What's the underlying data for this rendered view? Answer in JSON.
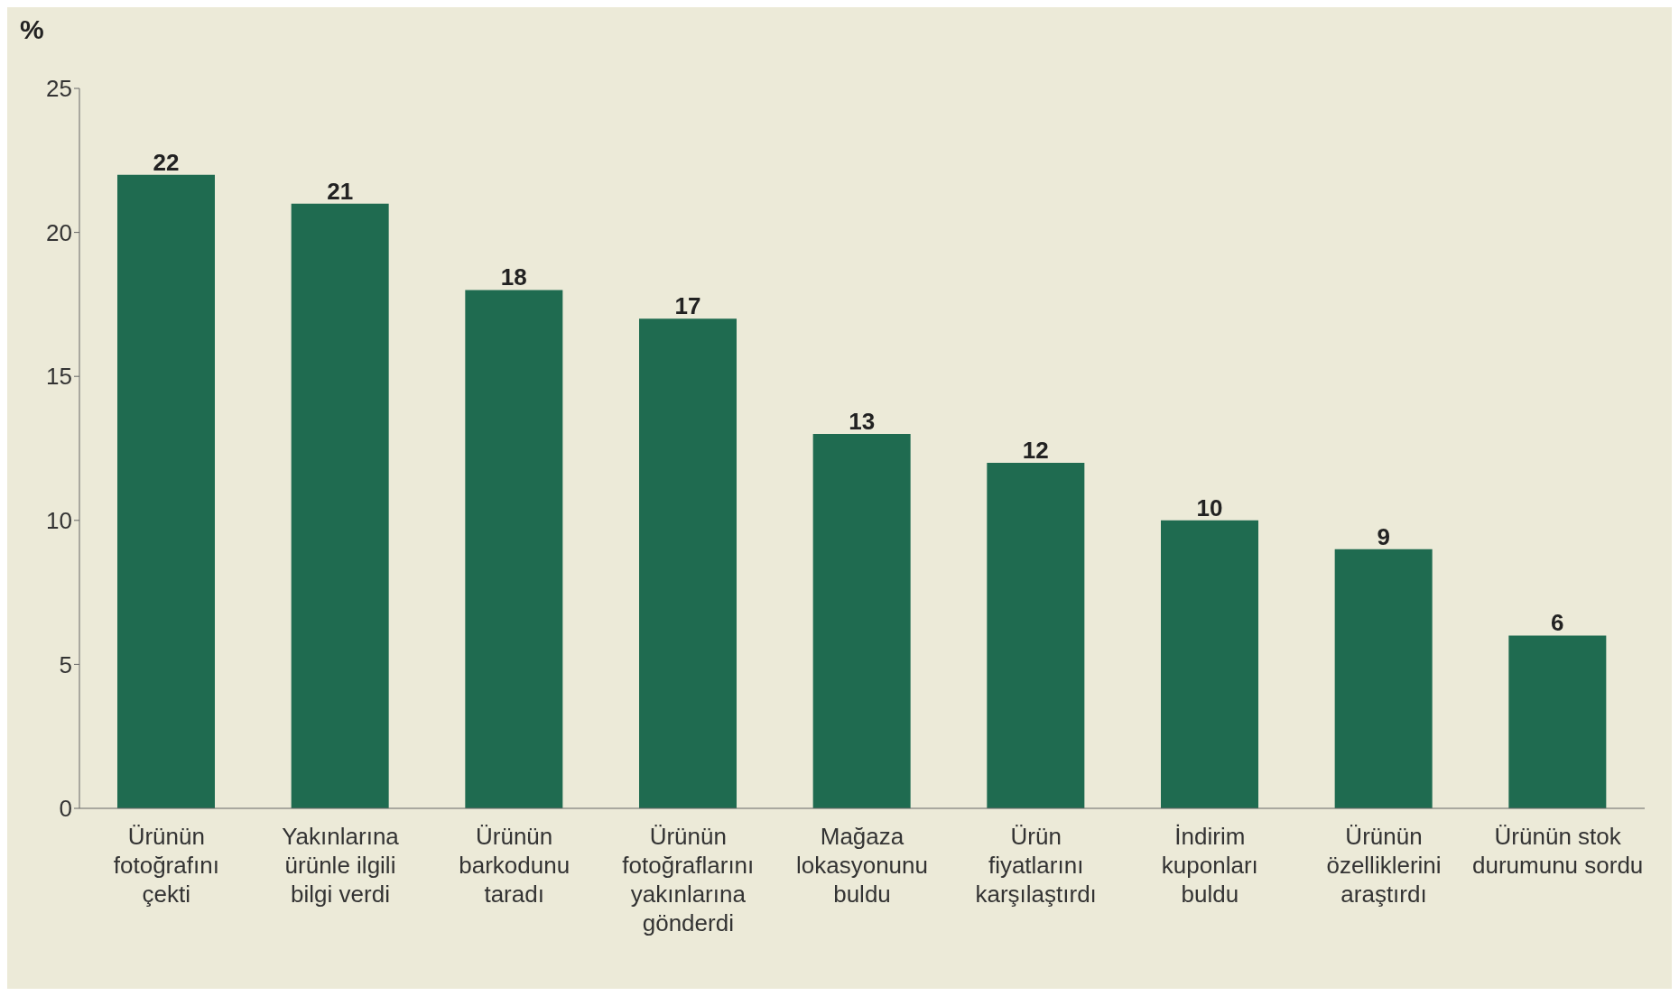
{
  "chart_data": {
    "type": "bar",
    "ylabel": "%",
    "categories": [
      "Ürünün fotoğrafını çekti",
      "Yakınlarına ürünle ilgili bilgi verdi",
      "Ürünün barkodunu taradı",
      "Ürünün fotoğraflarını yakınlarına gönderdi",
      "Mağaza lokasyonunu buldu",
      "Ürün fiyatlarını karşılaştırdı",
      "İndirim kuponları buldu",
      "Ürünün özelliklerini araştırdı",
      "Ürünün stok durumunu sordu"
    ],
    "values": [
      22,
      21,
      18,
      17,
      13,
      12,
      10,
      9,
      6
    ],
    "color": "#1f6b50",
    "ylim": [
      0,
      25
    ],
    "yticks": [
      0,
      5,
      10,
      15,
      20,
      25
    ],
    "data_labels": true,
    "grid": false,
    "legend": false
  }
}
